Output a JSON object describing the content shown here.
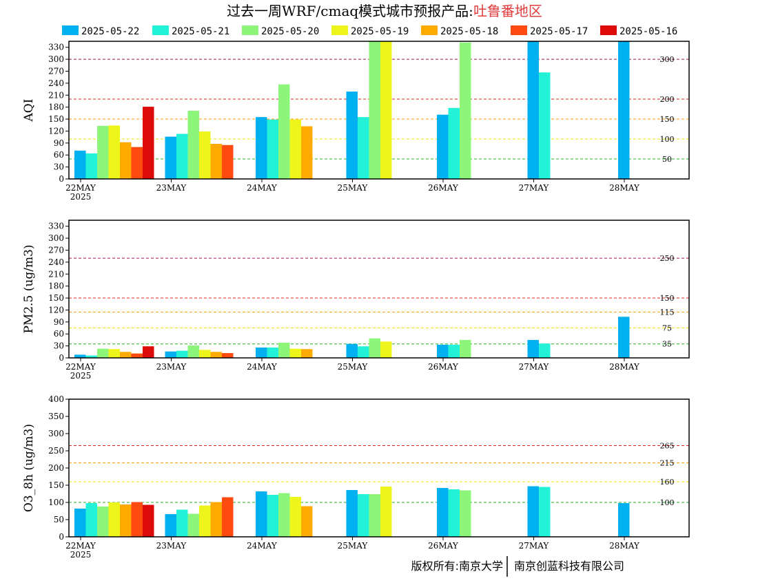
{
  "title": {
    "prefix": "过去一周WRF/cmaq模式城市预报产品:",
    "region": "吐鲁番地区",
    "region_color": "#e23b3b"
  },
  "footer": {
    "left": "版权所有:南京大学",
    "right": "南京创蓝科技有限公司"
  },
  "legend": [
    {
      "label": "2025-05-22",
      "color": "#00b0f0"
    },
    {
      "label": "2025-05-21",
      "color": "#22f2d8"
    },
    {
      "label": "2025-05-20",
      "color": "#8cf57a"
    },
    {
      "label": "2025-05-19",
      "color": "#eef51a"
    },
    {
      "label": "2025-05-18",
      "color": "#ffaa00"
    },
    {
      "label": "2025-05-17",
      "color": "#ff4a10"
    },
    {
      "label": "2025-05-16",
      "color": "#dd0a0a"
    }
  ],
  "chart_data": [
    {
      "type": "bar",
      "ylabel": "AQI",
      "ylim": [
        0,
        345
      ],
      "yticks": [
        0,
        30,
        60,
        90,
        120,
        150,
        180,
        210,
        240,
        270,
        300,
        330
      ],
      "categories": [
        "22MAY",
        "23MAY",
        "24MAY",
        "25MAY",
        "26MAY",
        "27MAY",
        "28MAY"
      ],
      "year_label": "2025",
      "thresholds": [
        {
          "value": 50,
          "label": "50",
          "color": "#22b222"
        },
        {
          "value": 100,
          "label": "100",
          "color": "#e8e800"
        },
        {
          "value": 150,
          "label": "150",
          "color": "#ff9a00"
        },
        {
          "value": 200,
          "label": "200",
          "color": "#dd2020"
        },
        {
          "value": 300,
          "label": "300",
          "color": "#a0105a"
        }
      ],
      "series": [
        {
          "name": "2025-05-22",
          "values": [
            71,
            106,
            155,
            219,
            161,
            350,
            350
          ]
        },
        {
          "name": "2025-05-21",
          "values": [
            64,
            113,
            149,
            155,
            178,
            267,
            null
          ]
        },
        {
          "name": "2025-05-20",
          "values": [
            133,
            171,
            237,
            350,
            342,
            null,
            null
          ]
        },
        {
          "name": "2025-05-19",
          "values": [
            134,
            119,
            149,
            350,
            null,
            null,
            null
          ]
        },
        {
          "name": "2025-05-18",
          "values": [
            92,
            88,
            132,
            null,
            null,
            null,
            null
          ]
        },
        {
          "name": "2025-05-17",
          "values": [
            80,
            85,
            null,
            null,
            null,
            null,
            null
          ]
        },
        {
          "name": "2025-05-16",
          "values": [
            181,
            null,
            null,
            null,
            null,
            null,
            null
          ]
        }
      ]
    },
    {
      "type": "bar",
      "ylabel": "PM2.5 (ug/m3)",
      "ylim": [
        0,
        345
      ],
      "yticks": [
        0,
        30,
        60,
        90,
        120,
        150,
        180,
        210,
        240,
        270,
        300,
        330
      ],
      "categories": [
        "22MAY",
        "23MAY",
        "24MAY",
        "25MAY",
        "26MAY",
        "27MAY",
        "28MAY"
      ],
      "year_label": "2025",
      "thresholds": [
        {
          "value": 35,
          "label": "35",
          "color": "#22b222"
        },
        {
          "value": 75,
          "label": "75",
          "color": "#e8e800"
        },
        {
          "value": 115,
          "label": "115",
          "color": "#ff9a00"
        },
        {
          "value": 150,
          "label": "150",
          "color": "#dd2020"
        },
        {
          "value": 250,
          "label": "250",
          "color": "#a0105a"
        }
      ],
      "series": [
        {
          "name": "2025-05-22",
          "values": [
            8,
            16,
            26,
            35,
            33,
            45,
            103
          ]
        },
        {
          "name": "2025-05-21",
          "values": [
            6,
            18,
            26,
            29,
            33,
            36,
            null
          ]
        },
        {
          "name": "2025-05-20",
          "values": [
            23,
            31,
            38,
            49,
            45,
            null,
            null
          ]
        },
        {
          "name": "2025-05-19",
          "values": [
            22,
            20,
            23,
            41,
            null,
            null,
            null
          ]
        },
        {
          "name": "2025-05-18",
          "values": [
            15,
            15,
            22,
            null,
            null,
            null,
            null
          ]
        },
        {
          "name": "2025-05-17",
          "values": [
            11,
            12,
            null,
            null,
            null,
            null,
            null
          ]
        },
        {
          "name": "2025-05-16",
          "values": [
            29,
            null,
            null,
            null,
            null,
            null,
            null
          ]
        }
      ]
    },
    {
      "type": "bar",
      "ylabel": "O3_8h (ug/m3)",
      "ylim": [
        0,
        400
      ],
      "yticks": [
        0,
        50,
        100,
        150,
        200,
        250,
        300,
        350,
        400
      ],
      "categories": [
        "22MAY",
        "23MAY",
        "24MAY",
        "25MAY",
        "26MAY",
        "27MAY",
        "28MAY"
      ],
      "year_label": "2025",
      "thresholds": [
        {
          "value": 100,
          "label": "100",
          "color": "#22b222"
        },
        {
          "value": 160,
          "label": "160",
          "color": "#e8e800"
        },
        {
          "value": 215,
          "label": "215",
          "color": "#ff9a00"
        },
        {
          "value": 265,
          "label": "265",
          "color": "#dd2020"
        }
      ],
      "series": [
        {
          "name": "2025-05-22",
          "values": [
            82,
            66,
            132,
            136,
            142,
            147,
            98
          ]
        },
        {
          "name": "2025-05-21",
          "values": [
            98,
            79,
            122,
            124,
            138,
            145,
            null
          ]
        },
        {
          "name": "2025-05-20",
          "values": [
            88,
            67,
            127,
            124,
            135,
            null,
            null
          ]
        },
        {
          "name": "2025-05-19",
          "values": [
            100,
            91,
            116,
            146,
            null,
            null,
            null
          ]
        },
        {
          "name": "2025-05-18",
          "values": [
            94,
            101,
            89,
            null,
            null,
            null,
            null
          ]
        },
        {
          "name": "2025-05-17",
          "values": [
            101,
            115,
            null,
            null,
            null,
            null,
            null
          ]
        },
        {
          "name": "2025-05-16",
          "values": [
            93,
            null,
            null,
            null,
            null,
            null,
            null
          ]
        }
      ]
    }
  ]
}
